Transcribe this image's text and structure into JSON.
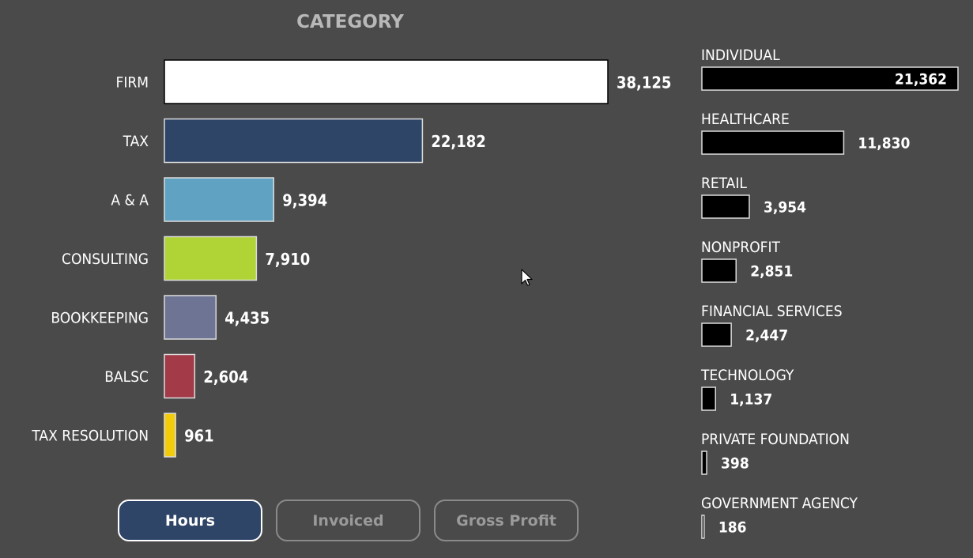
{
  "chart_data": [
    {
      "type": "bar",
      "orientation": "horizontal",
      "title": "CATEGORY",
      "categories": [
        "FIRM",
        "TAX",
        "A & A",
        "CONSULTING",
        "BOOKKEEPING",
        "BALSC",
        "TAX RESOLUTION"
      ],
      "values": [
        38125,
        22182,
        9394,
        7910,
        4435,
        2604,
        961
      ],
      "value_labels": [
        "38,125",
        "22,182",
        "9,394",
        "7,910",
        "4,435",
        "2,604",
        "961"
      ],
      "colors": [
        "#ffffff",
        "#2e4568",
        "#5fa2c2",
        "#b0d335",
        "#6e7493",
        "#a33a48",
        "#f2cc0c"
      ],
      "xlim": [
        0,
        38125
      ],
      "grid": false,
      "legend": "none"
    },
    {
      "type": "bar",
      "orientation": "horizontal",
      "title": "",
      "categories": [
        "INDIVIDUAL",
        "HEALTHCARE",
        "RETAIL",
        "NONPROFIT",
        "FINANCIAL SERVICES",
        "TECHNOLOGY",
        "PRIVATE FOUNDATION",
        "GOVERNMENT AGENCY"
      ],
      "values": [
        21362,
        11830,
        3954,
        2851,
        2447,
        1137,
        398,
        186
      ],
      "value_labels": [
        "21,362",
        "11,830",
        "3,954",
        "2,851",
        "2,447",
        "1,137",
        "398",
        "186"
      ],
      "color": "#000000",
      "xlim": [
        0,
        21362
      ],
      "grid": false,
      "legend": "none"
    }
  ],
  "buttons": {
    "hours": "Hours",
    "invoiced": "Invoiced",
    "gross_profit": "Gross Profit"
  }
}
